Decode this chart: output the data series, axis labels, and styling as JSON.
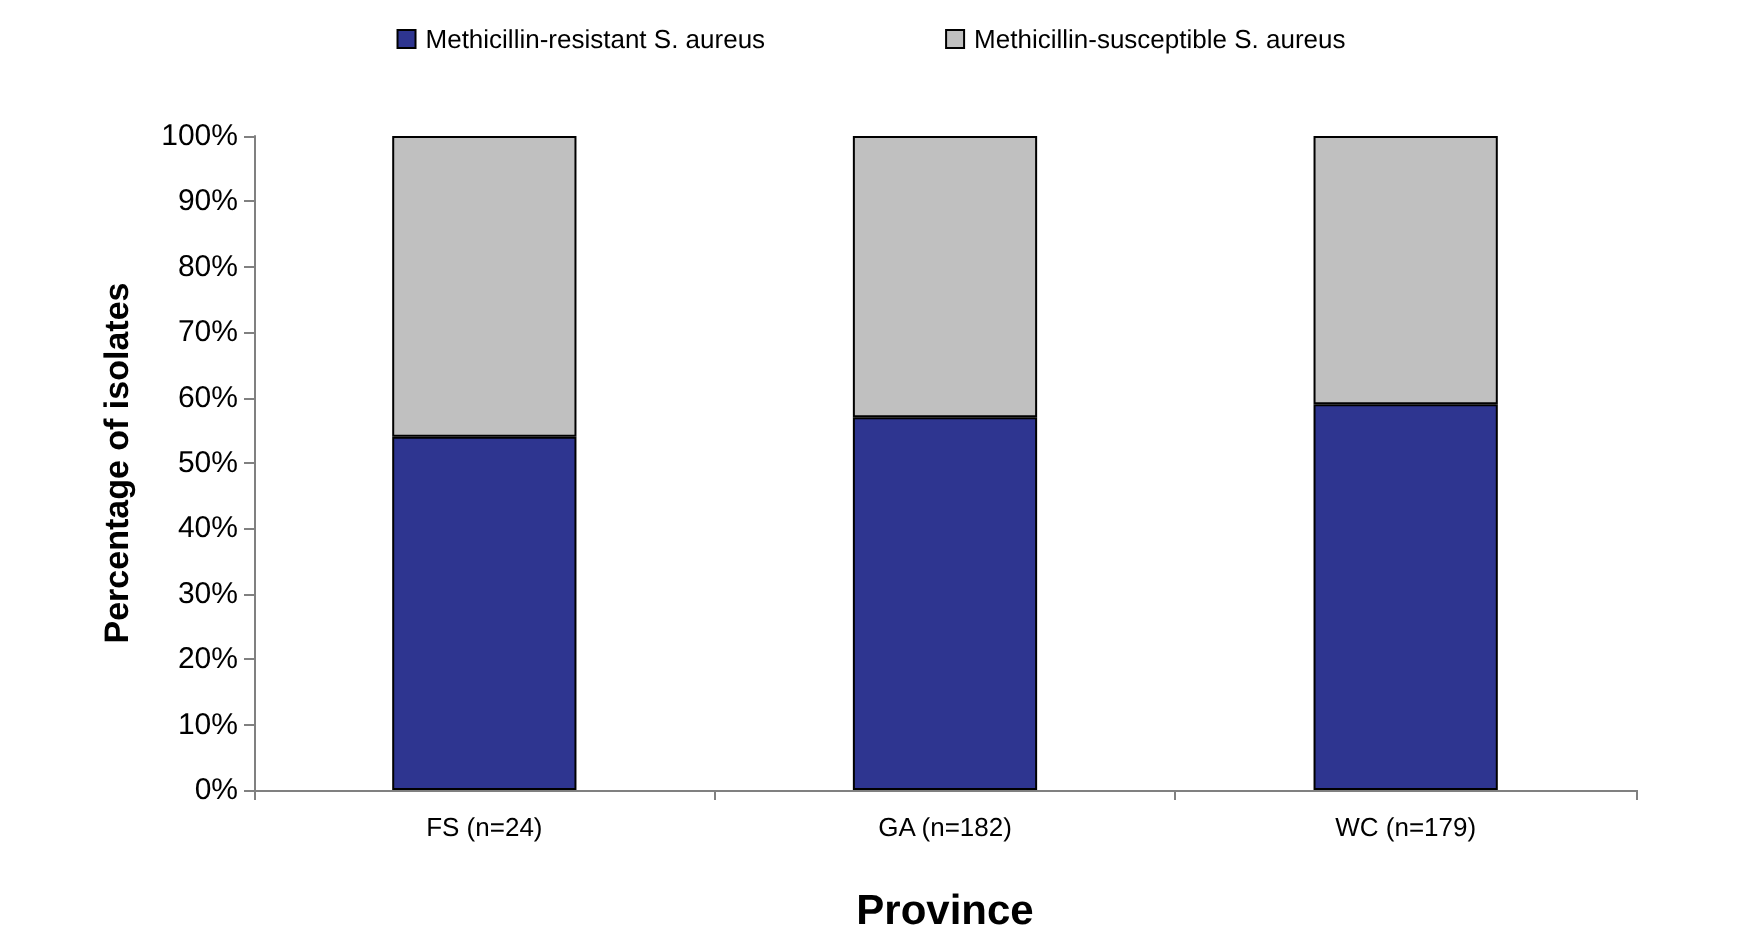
{
  "chart_data": {
    "type": "bar",
    "stacked": true,
    "xlabel": "Province",
    "ylabel": "Percentage of isolates",
    "categories": [
      "FS (n=24)",
      "GA (n=182)",
      "WC (n=179)"
    ],
    "series": [
      {
        "name": "Methicillin-resistant S. aureus",
        "color": "#2e3590",
        "values": [
          54,
          57,
          59
        ]
      },
      {
        "name": "Methicillin-susceptible S. aureus",
        "color": "#c0c0c0",
        "values": [
          46,
          43,
          41
        ]
      }
    ],
    "ylim": [
      0,
      100
    ],
    "yticks": [
      {
        "value": 0,
        "label": "0%"
      },
      {
        "value": 10,
        "label": "10%"
      },
      {
        "value": 20,
        "label": "20%"
      },
      {
        "value": 30,
        "label": "30%"
      },
      {
        "value": 40,
        "label": "40%"
      },
      {
        "value": 50,
        "label": "50%"
      },
      {
        "value": 60,
        "label": "60%"
      },
      {
        "value": 70,
        "label": "70%"
      },
      {
        "value": 80,
        "label": "80%"
      },
      {
        "value": 90,
        "label": "90%"
      },
      {
        "value": 100,
        "label": "100%"
      }
    ],
    "grid": false,
    "legend": "top"
  }
}
